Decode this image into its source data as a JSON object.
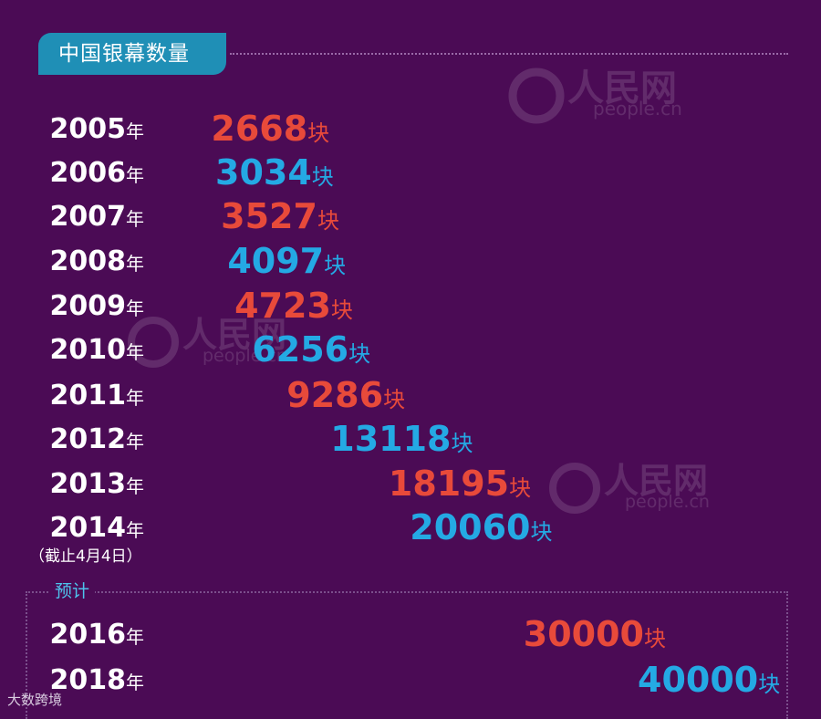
{
  "title": "中国银幕数量",
  "forecast_label": "预计",
  "note": "（截止4月4日）",
  "footer_brand": "大数跨境",
  "watermark": {
    "brand": "人民网",
    "site": "people.cn"
  },
  "colors": {
    "background": "#4b0b55",
    "red": "#e84a3a",
    "blue": "#24a9e4",
    "bar_red": "#ff9aa8",
    "bar_blue": "#8ad4ff",
    "title_tab": "#1f8fb6"
  },
  "chart_data": {
    "type": "bar",
    "orientation": "horizontal",
    "title": "中国银幕数量",
    "unit_suffix": "块",
    "categories": [
      "2005年",
      "2006年",
      "2007年",
      "2008年",
      "2009年",
      "2010年",
      "2011年",
      "2012年",
      "2013年",
      "2014年",
      "2016年",
      "2018年"
    ],
    "values": [
      2668,
      3034,
      3527,
      4097,
      4723,
      6256,
      9286,
      13118,
      18195,
      20060,
      30000,
      40000
    ],
    "color_pattern": [
      "red",
      "blue",
      "red",
      "blue",
      "red",
      "blue",
      "red",
      "blue",
      "red",
      "blue",
      "red",
      "blue"
    ],
    "forecast_categories": [
      "2016年",
      "2018年"
    ],
    "grid": false,
    "legend": "none"
  }
}
